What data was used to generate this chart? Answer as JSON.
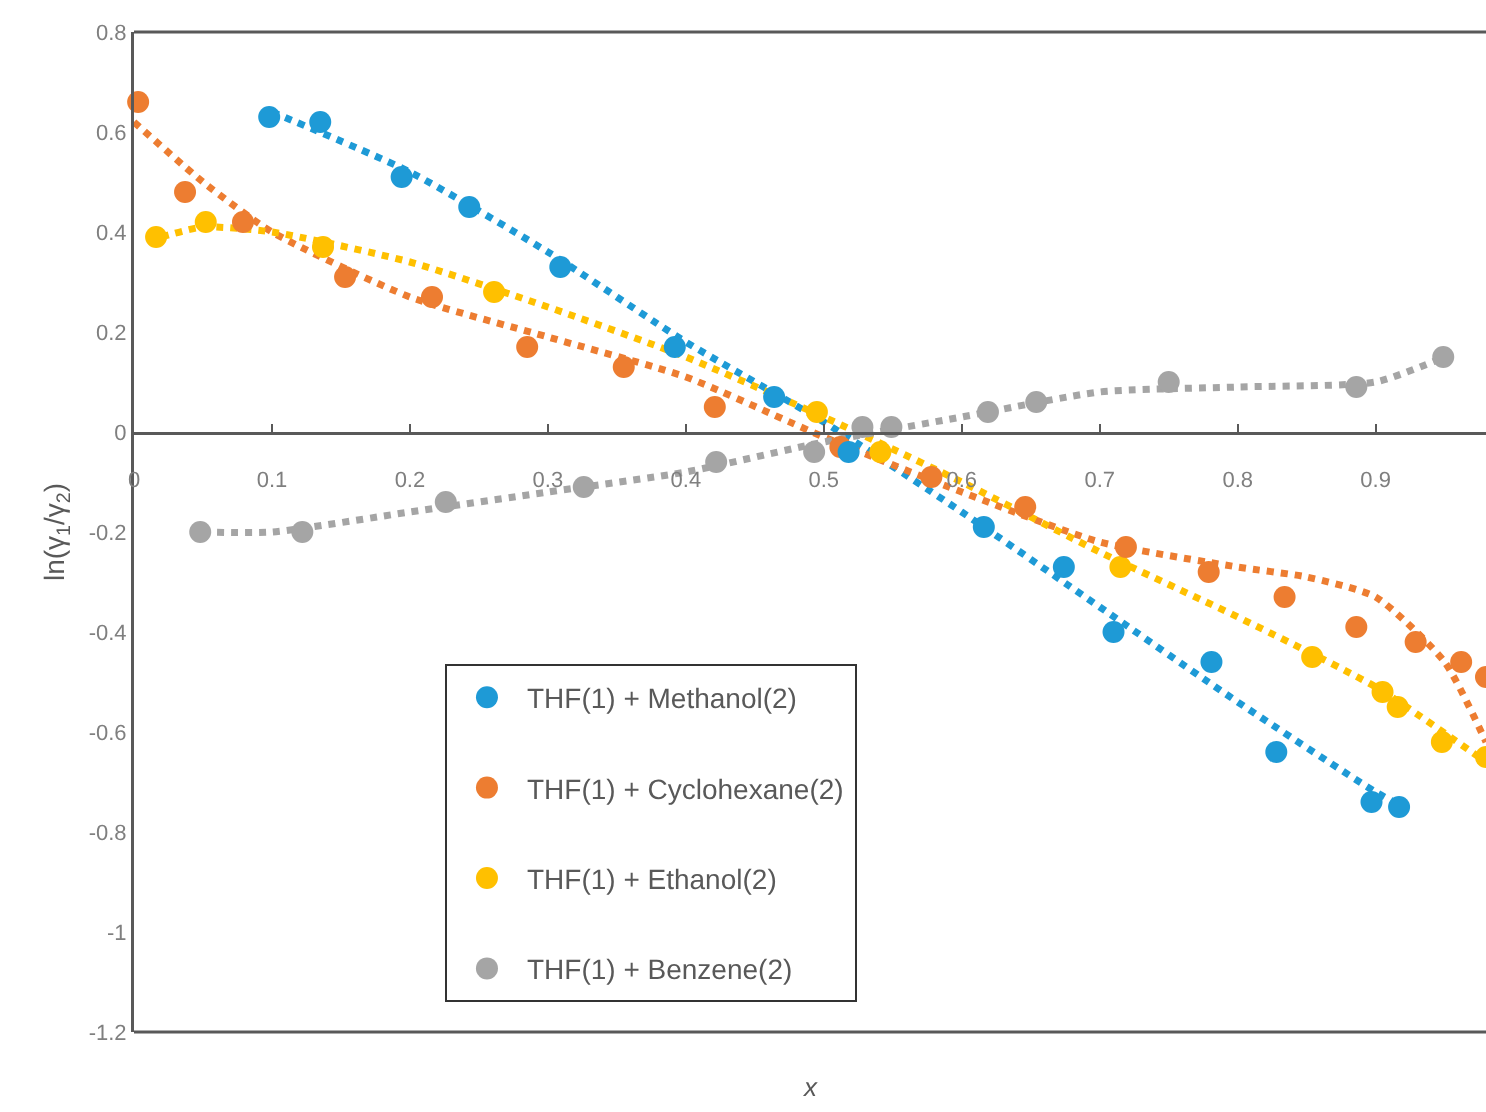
{
  "chart_data": {
    "type": "scatter",
    "xlabel": "x",
    "ylabel": "ln(γ$_{1}$/γ$_{2}$)",
    "xlim": [
      0,
      0.98
    ],
    "xticks": [
      {
        "value": 0,
        "label": "0"
      },
      0.1,
      0.2,
      0.3,
      0.4,
      0.5,
      0.6,
      0.7,
      0.8,
      0.9
    ],
    "ylim": [
      -1.2,
      0.8
    ],
    "yticks": [
      -1.2,
      -1,
      -0.8,
      -0.6,
      -0.4,
      -0.2,
      0,
      0.2,
      0.4,
      0.6,
      0.8
    ],
    "grid": false,
    "legend": "bottom",
    "marker": "circle",
    "series": [
      {
        "name": "THF(1) + Methanol(2)",
        "color": "#1e9ad6",
        "x": [
          0.098,
          0.135,
          0.194,
          0.243,
          0.309,
          0.392,
          0.464,
          0.518,
          0.616,
          0.674,
          0.71,
          0.781,
          0.828,
          0.897,
          0.917
        ],
        "values": [
          0.63,
          0.62,
          0.51,
          0.45,
          0.33,
          0.17,
          0.07,
          -0.04,
          -0.19,
          -0.27,
          -0.4,
          -0.46,
          -0.64,
          -0.74,
          -0.75
        ]
      },
      {
        "name": "THF(1) + Cyclohexane(2)",
        "color": "#ed7d31",
        "x": [
          0.003,
          0.037,
          0.079,
          0.153,
          0.216,
          0.285,
          0.355,
          0.421,
          0.512,
          0.578,
          0.646,
          0.719,
          0.779,
          0.834,
          0.886,
          0.929,
          0.962,
          0.98
        ],
        "values": [
          0.66,
          0.48,
          0.42,
          0.31,
          0.27,
          0.17,
          0.13,
          0.05,
          -0.03,
          -0.09,
          -0.15,
          -0.23,
          -0.28,
          -0.33,
          -0.39,
          -0.42,
          -0.46,
          -0.49
        ]
      },
      {
        "name": "THF(1) + Ethanol(2)",
        "color": "#ffc000",
        "x": [
          0.016,
          0.052,
          0.137,
          0.261,
          0.495,
          0.541,
          0.715,
          0.854,
          0.905,
          0.916,
          0.948,
          0.98
        ],
        "values": [
          0.39,
          0.42,
          0.37,
          0.28,
          0.04,
          -0.04,
          -0.27,
          -0.45,
          -0.52,
          -0.55,
          -0.62,
          -0.65
        ]
      },
      {
        "name": "THF(1) + Benzene(2)",
        "color": "#a5a5a5",
        "x": [
          0.048,
          0.122,
          0.226,
          0.326,
          0.422,
          0.493,
          0.528,
          0.549,
          0.619,
          0.654,
          0.75,
          0.886,
          0.949
        ],
        "values": [
          -0.2,
          -0.2,
          -0.14,
          -0.11,
          -0.06,
          -0.04,
          0.01,
          0.01,
          0.04,
          0.06,
          0.1,
          0.09,
          0.15
        ]
      },
      {
        "type": "line",
        "line_style": "dotted",
        "marker": "none",
        "color": "#1e9ad6",
        "x": [
          0.1,
          0.2,
          0.3,
          0.4,
          0.5,
          0.6,
          0.7,
          0.8,
          0.9,
          0.92
        ],
        "values": [
          0.64,
          0.52,
          0.36,
          0.18,
          0.02,
          -0.16,
          -0.35,
          -0.54,
          -0.72,
          -0.75
        ]
      },
      {
        "type": "line",
        "line_style": "dotted",
        "marker": "none",
        "color": "#ed7d31",
        "x": [
          0,
          0.05,
          0.1,
          0.2,
          0.3,
          0.4,
          0.5,
          0.6,
          0.7,
          0.8,
          0.85,
          0.9,
          0.95,
          0.98
        ],
        "values": [
          0.62,
          0.5,
          0.4,
          0.27,
          0.19,
          0.11,
          -0.01,
          -0.12,
          -0.22,
          -0.27,
          -0.29,
          -0.33,
          -0.46,
          -0.62
        ]
      },
      {
        "type": "line",
        "line_style": "dotted",
        "marker": "none",
        "color": "#ffc000",
        "x": [
          0.02,
          0.05,
          0.1,
          0.2,
          0.3,
          0.4,
          0.5,
          0.6,
          0.7,
          0.8,
          0.9,
          0.98
        ],
        "values": [
          0.39,
          0.41,
          0.4,
          0.34,
          0.25,
          0.15,
          0.03,
          -0.1,
          -0.24,
          -0.37,
          -0.51,
          -0.66
        ]
      },
      {
        "type": "line",
        "line_style": "dotted",
        "marker": "none",
        "color": "#a5a5a5",
        "x": [
          0.05,
          0.1,
          0.2,
          0.3,
          0.4,
          0.5,
          0.6,
          0.7,
          0.8,
          0.9,
          0.95
        ],
        "values": [
          -0.2,
          -0.2,
          -0.16,
          -0.12,
          -0.08,
          -0.02,
          0.03,
          0.08,
          0.09,
          0.1,
          0.15
        ]
      }
    ]
  }
}
